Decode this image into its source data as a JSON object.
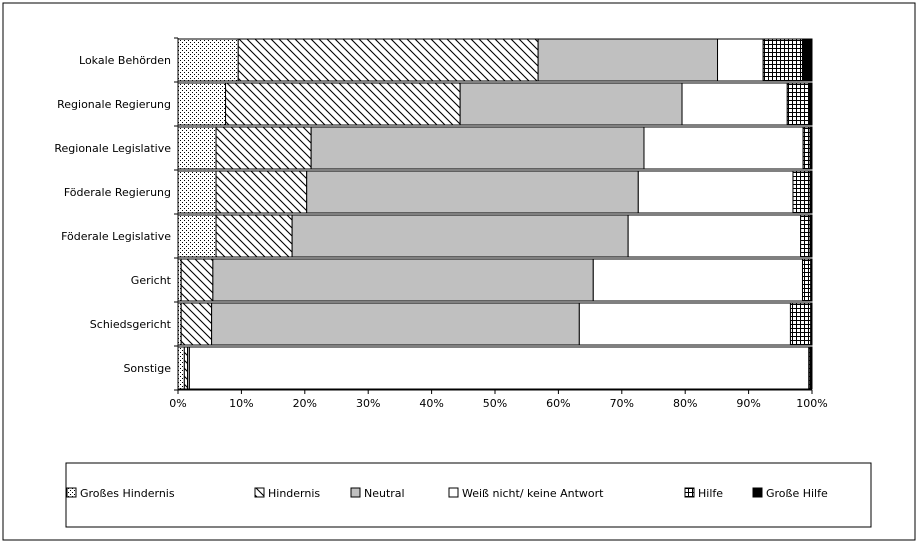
{
  "chart_data": {
    "type": "bar",
    "orientation": "horizontal",
    "stacked": "percent",
    "categories": [
      "Lokale Behörden",
      "Regionale Regierung",
      "Regionale Legislative",
      "Föderale Regierung",
      "Föderale Legislative",
      "Gericht",
      "Schiedsgericht",
      "Sonstige"
    ],
    "series": [
      {
        "name": "Großes Hindernis",
        "values": [
          9.5,
          7.5,
          6.0,
          6.0,
          6.0,
          0.5,
          0.5,
          1.0
        ],
        "pattern": "dots"
      },
      {
        "name": "Hindernis",
        "values": [
          47.3,
          37.0,
          15.0,
          14.3,
          12.0,
          5.0,
          4.8,
          0.5
        ],
        "pattern": "diagonal"
      },
      {
        "name": "Neutral",
        "values": [
          28.3,
          35.0,
          52.5,
          52.3,
          53.0,
          60.0,
          58.0,
          0.3
        ],
        "pattern": "gray"
      },
      {
        "name": "Weiß nicht/ keine Antwort",
        "values": [
          7.2,
          16.6,
          25.1,
          24.4,
          27.2,
          33.0,
          33.3,
          97.7
        ],
        "pattern": "white"
      },
      {
        "name": "Hilfe",
        "values": [
          6.2,
          3.4,
          1.1,
          2.7,
          1.5,
          1.3,
          3.2,
          0.2
        ],
        "pattern": "grid"
      },
      {
        "name": "Große Hilfe",
        "values": [
          1.5,
          0.5,
          0.3,
          0.3,
          0.3,
          0.2,
          0.2,
          0.3
        ],
        "pattern": "black"
      }
    ],
    "xlim": [
      0,
      100
    ],
    "xticks": [
      "0%",
      "10%",
      "20%",
      "30%",
      "40%",
      "50%",
      "60%",
      "70%",
      "80%",
      "90%",
      "100%"
    ],
    "legend_position": "bottom",
    "grid": false,
    "colors": {
      "neutral": "#c0c0c0",
      "border": "#000000",
      "background": "#ffffff"
    }
  }
}
